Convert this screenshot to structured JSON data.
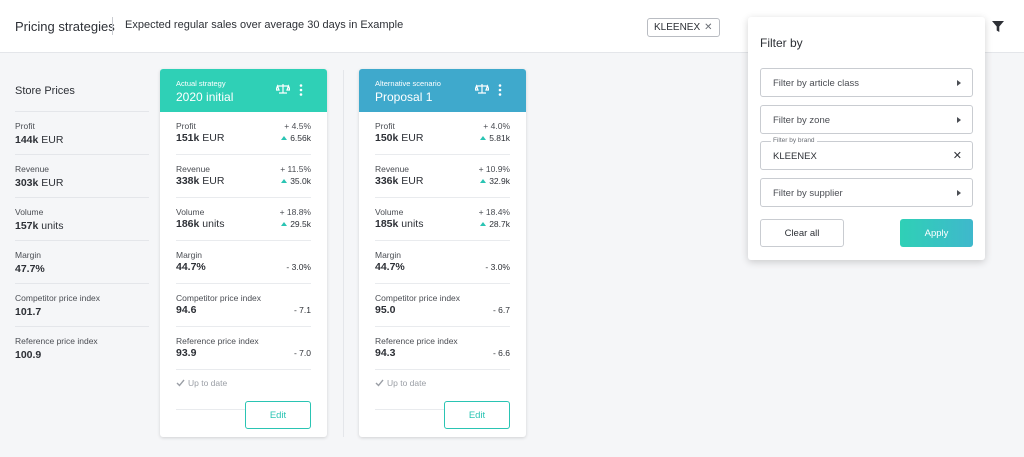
{
  "header": {
    "title": "Pricing strategies",
    "subtitle": "Expected regular sales over average 30 days in Example",
    "chip_label": "KLEENEX",
    "chip_close": "✕",
    "filter_icon": "funnel-icon"
  },
  "store": {
    "heading": "Store Prices",
    "metrics": [
      {
        "label": "Profit",
        "value": "144k",
        "unit": "EUR"
      },
      {
        "label": "Revenue",
        "value": "303k",
        "unit": "EUR"
      },
      {
        "label": "Volume",
        "value": "157k",
        "unit": "units"
      },
      {
        "label": "Margin",
        "value": "47.7%",
        "unit": ""
      },
      {
        "label": "Competitor price index",
        "value": "101.7",
        "unit": ""
      },
      {
        "label": "Reference price index",
        "value": "100.9",
        "unit": ""
      }
    ]
  },
  "cards": [
    {
      "kind": "Actual strategy",
      "name": "2020 initial",
      "color": "#2fd0b6",
      "rows": [
        {
          "label": "Profit",
          "value": "151k",
          "unit": "EUR",
          "pct": "+ 4.5%",
          "delta": "6.56k"
        },
        {
          "label": "Revenue",
          "value": "338k",
          "unit": "EUR",
          "pct": "+ 11.5%",
          "delta": "35.0k"
        },
        {
          "label": "Volume",
          "value": "186k",
          "unit": "units",
          "pct": "+ 18.8%",
          "delta": "29.5k"
        },
        {
          "label": "Margin",
          "value": "44.7%",
          "unit": "",
          "change": "- 3.0%"
        },
        {
          "label": "Competitor price index",
          "value": "94.6",
          "unit": "",
          "change": "- 7.1"
        },
        {
          "label": "Reference price index",
          "value": "93.9",
          "unit": "",
          "change": "- 7.0"
        }
      ],
      "status": "Up to date",
      "edit_label": "Edit"
    },
    {
      "kind": "Alternative scenario",
      "name": "Proposal 1",
      "color": "#3fa9cc",
      "rows": [
        {
          "label": "Profit",
          "value": "150k",
          "unit": "EUR",
          "pct": "+ 4.0%",
          "delta": "5.81k"
        },
        {
          "label": "Revenue",
          "value": "336k",
          "unit": "EUR",
          "pct": "+ 10.9%",
          "delta": "32.9k"
        },
        {
          "label": "Volume",
          "value": "185k",
          "unit": "units",
          "pct": "+ 18.4%",
          "delta": "28.7k"
        },
        {
          "label": "Margin",
          "value": "44.7%",
          "unit": "",
          "change": "- 3.0%"
        },
        {
          "label": "Competitor price index",
          "value": "95.0",
          "unit": "",
          "change": "- 6.7"
        },
        {
          "label": "Reference price index",
          "value": "94.3",
          "unit": "",
          "change": "- 6.6"
        }
      ],
      "status": "Up to date",
      "edit_label": "Edit"
    }
  ],
  "filter_panel": {
    "title": "Filter by",
    "article_class": "Filter by article class",
    "zone": "Filter by zone",
    "brand_label": "Filter by brand",
    "brand_value": "KLEENEX",
    "brand_clear": "✕",
    "supplier": "Filter by supplier",
    "clear_all": "Clear all",
    "apply": "Apply"
  }
}
